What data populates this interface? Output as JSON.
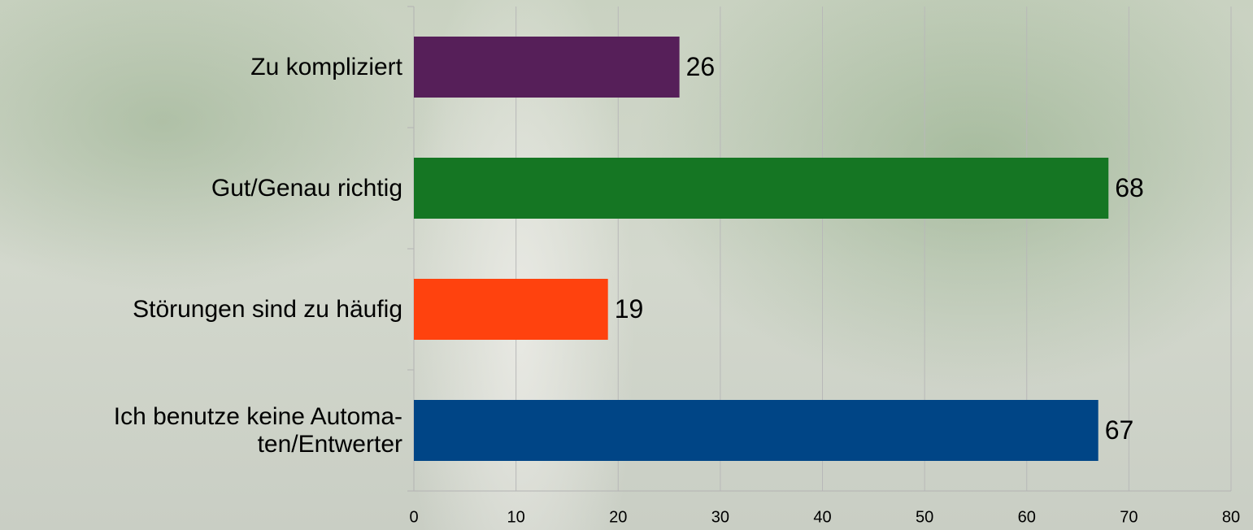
{
  "chart_data": {
    "type": "barh",
    "categories": [
      "Zu kompliziert",
      "Gut/Genau richtig",
      "Störungen sind zu häufig",
      "Ich benutze keine Automa-\nten/Entwerter"
    ],
    "values": [
      26,
      68,
      19,
      67
    ],
    "colors": [
      "#561f59",
      "#157623",
      "#ff420e",
      "#004586"
    ],
    "xlim": [
      0,
      80
    ],
    "xticks": [
      0,
      10,
      20,
      30,
      40,
      50,
      60,
      70,
      80
    ],
    "grid": true
  }
}
